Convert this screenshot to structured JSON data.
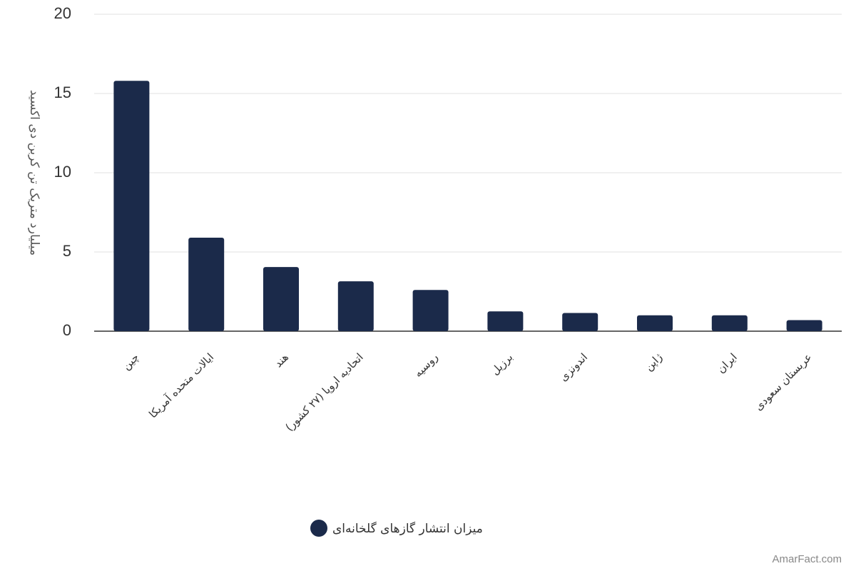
{
  "chart_data": {
    "type": "bar",
    "y_label": "میلیارد متریک تن کربن دی اکسید",
    "categories": [
      "چین",
      "ایالات متحده آمریکا",
      "هند",
      "اتحادیه اروپا (۲۷ کشور)",
      "روسیه",
      "برزیل",
      "اندونزی",
      "ژاپن",
      "ایران",
      "عربستان سعودی"
    ],
    "series": [
      {
        "name": "میزان انتشار گازهای گلخانه‌ای",
        "color": "#1b2a4a",
        "values": [
          15.8,
          5.9,
          4.05,
          3.15,
          2.6,
          1.25,
          1.15,
          1.0,
          1.0,
          0.7
        ]
      }
    ],
    "ylim": [
      0,
      20
    ],
    "yticks": [
      0,
      5,
      10,
      15,
      20
    ],
    "grid": true,
    "watermark": "AmarFact.com"
  }
}
